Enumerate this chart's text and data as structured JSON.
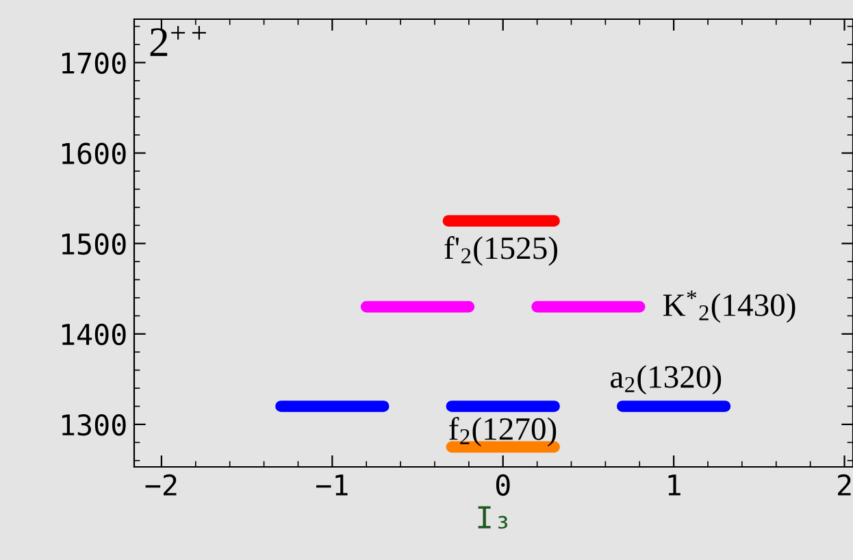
{
  "chart_data": {
    "type": "line",
    "xlabel": "I₃",
    "xlim": [
      -2.16,
      2.05
    ],
    "xticks": [
      {
        "value": -2,
        "label": "−2"
      },
      {
        "value": -1,
        "label": "−1"
      },
      0,
      1,
      2
    ],
    "ylim": [
      1253,
      1748
    ],
    "yticks": [
      1300,
      1400,
      1500,
      1600,
      1700
    ],
    "grid": false,
    "legend": false,
    "marker": "none",
    "line_style": "solid",
    "series": [
      {
        "name": "f'$_{2}$(1525)",
        "color": "#ff0000",
        "x": [
          -0.32,
          0.3
        ],
        "values": [
          1525,
          1525
        ]
      },
      {
        "name": "K$^{*}$$_{2}$(1430)",
        "color": "#ff00ff",
        "x": [
          -0.8,
          -0.2,
          0,
          0.2,
          0.8
        ],
        "values": [
          1430,
          1430,
          null,
          1430,
          1430
        ]
      },
      {
        "name": "a$_{2}$(1320)",
        "color": "#0000ff",
        "x": [
          -1.3,
          -0.7,
          -0.5,
          -0.3,
          0.3,
          0.5,
          0.7,
          1.3
        ],
        "values": [
          1320,
          1320,
          null,
          1320,
          1320,
          null,
          1320,
          1320
        ]
      },
      {
        "name": "f$_{2}$(1270)",
        "color": "#ff8000",
        "x": [
          -0.3,
          0.3
        ],
        "values": [
          1275,
          1275
        ]
      }
    ],
    "annotations": [
      "2$^{++}$"
    ]
  }
}
